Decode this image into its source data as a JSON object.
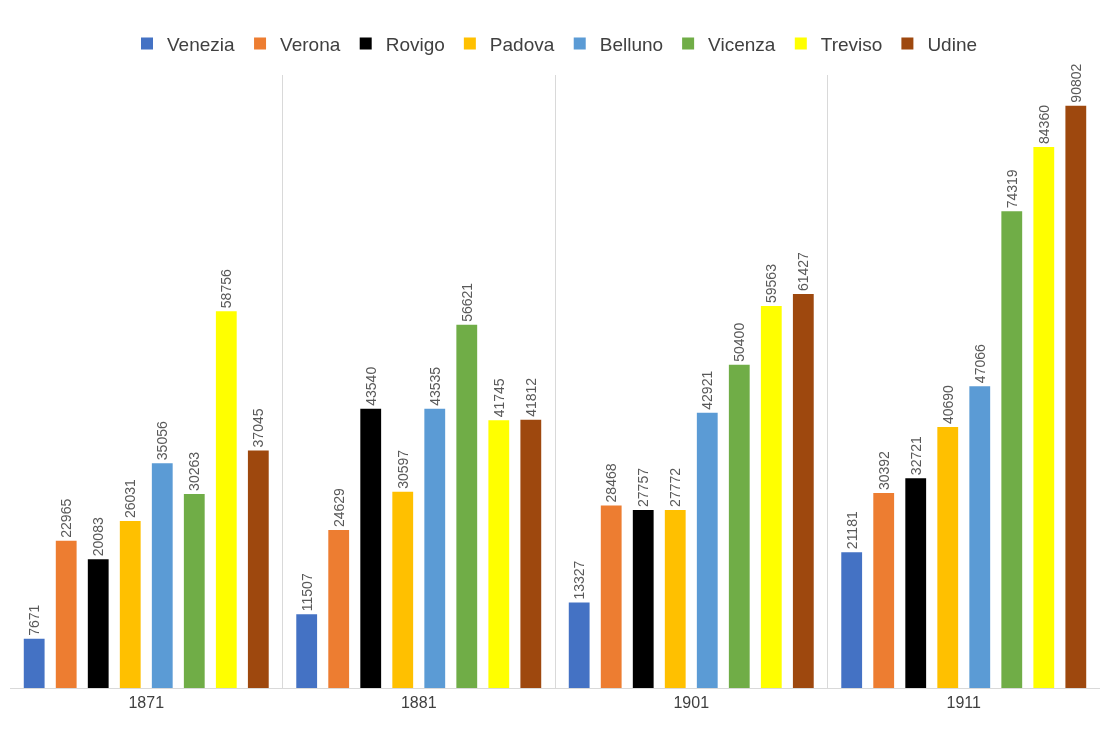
{
  "chart_data": {
    "type": "bar",
    "categories": [
      "1871",
      "1881",
      "1901",
      "1911"
    ],
    "series": [
      {
        "name": "Venezia",
        "color": "#4472c4",
        "values": [
          7671,
          11507,
          13327,
          21181
        ]
      },
      {
        "name": "Verona",
        "color": "#ed7d31",
        "values": [
          22965,
          24629,
          28468,
          30392
        ]
      },
      {
        "name": "Rovigo",
        "color": "#000000",
        "values": [
          20083,
          43540,
          27757,
          32721
        ]
      },
      {
        "name": "Padova",
        "color": "#ffc000",
        "values": [
          26031,
          30597,
          27772,
          40690
        ]
      },
      {
        "name": "Belluno",
        "color": "#5b9bd5",
        "values": [
          35056,
          43535,
          42921,
          47066
        ]
      },
      {
        "name": "Vicenza",
        "color": "#70ad47",
        "values": [
          30263,
          56621,
          50400,
          74319
        ]
      },
      {
        "name": "Treviso",
        "color": "#ffff00",
        "values": [
          58756,
          41745,
          59563,
          84360
        ]
      },
      {
        "name": "Udine",
        "color": "#9e480e",
        "values": [
          37045,
          41812,
          61427,
          90802
        ]
      }
    ],
    "data_labels": true,
    "grid": "x",
    "legend": "top",
    "tick_labels": "x"
  }
}
